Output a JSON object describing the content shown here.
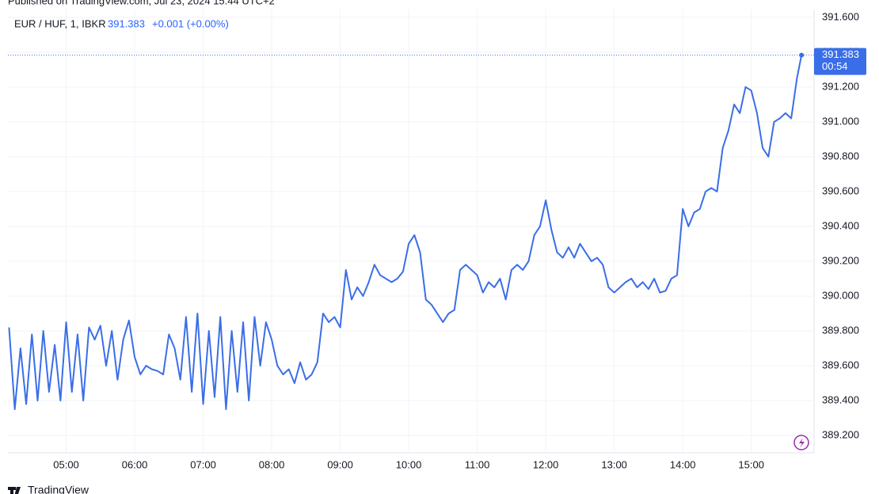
{
  "header": {
    "published": "Published on TradingView.com, Jul 23, 2024 15:44 UTC+2",
    "symbol": "EUR / HUF, 1, IBKR",
    "change": "+0.001 (+0.00%)",
    "countdown": "00:54",
    "brand": "TradingView"
  },
  "chart_data": {
    "type": "line",
    "x": [
      "04:10",
      "04:15",
      "04:20",
      "04:25",
      "04:30",
      "04:35",
      "04:40",
      "04:45",
      "04:50",
      "04:55",
      "05:00",
      "05:05",
      "05:10",
      "05:15",
      "05:20",
      "05:25",
      "05:30",
      "05:35",
      "05:40",
      "05:45",
      "05:50",
      "05:55",
      "06:00",
      "06:05",
      "06:10",
      "06:15",
      "06:20",
      "06:25",
      "06:30",
      "06:35",
      "06:40",
      "06:45",
      "06:50",
      "06:55",
      "07:00",
      "07:05",
      "07:10",
      "07:15",
      "07:20",
      "07:25",
      "07:30",
      "07:35",
      "07:40",
      "07:45",
      "07:50",
      "07:55",
      "08:00",
      "08:05",
      "08:10",
      "08:15",
      "08:20",
      "08:25",
      "08:30",
      "08:35",
      "08:40",
      "08:45",
      "08:50",
      "08:55",
      "09:00",
      "09:05",
      "09:10",
      "09:15",
      "09:20",
      "09:25",
      "09:30",
      "09:35",
      "09:40",
      "09:45",
      "09:50",
      "09:55",
      "10:00",
      "10:05",
      "10:10",
      "10:15",
      "10:20",
      "10:25",
      "10:30",
      "10:35",
      "10:40",
      "10:45",
      "10:50",
      "10:55",
      "11:00",
      "11:05",
      "11:10",
      "11:15",
      "11:20",
      "11:25",
      "11:30",
      "11:35",
      "11:40",
      "11:45",
      "11:50",
      "11:55",
      "12:00",
      "12:05",
      "12:10",
      "12:15",
      "12:20",
      "12:25",
      "12:30",
      "12:35",
      "12:40",
      "12:45",
      "12:50",
      "12:55",
      "13:00",
      "13:05",
      "13:10",
      "13:15",
      "13:20",
      "13:25",
      "13:30",
      "13:35",
      "13:40",
      "13:45",
      "13:50",
      "13:55",
      "14:00",
      "14:05",
      "14:10",
      "14:15",
      "14:20",
      "14:25",
      "14:30",
      "14:35",
      "14:40",
      "14:45",
      "14:50",
      "14:55",
      "15:00",
      "15:05",
      "15:10",
      "15:15",
      "15:20",
      "15:25",
      "15:30",
      "15:35",
      "15:40",
      "15:44"
    ],
    "series": [
      {
        "name": "EUR / HUF",
        "color": "#3a6ee8",
        "values": [
          389.82,
          389.35,
          389.7,
          389.38,
          389.78,
          389.4,
          389.8,
          389.45,
          389.72,
          389.4,
          389.85,
          389.45,
          389.78,
          389.4,
          389.82,
          389.75,
          389.83,
          389.6,
          389.8,
          389.52,
          389.75,
          389.86,
          389.65,
          389.55,
          389.6,
          389.58,
          389.57,
          389.55,
          389.78,
          389.7,
          389.52,
          389.88,
          389.45,
          389.9,
          389.38,
          389.8,
          389.42,
          389.88,
          389.35,
          389.8,
          389.45,
          389.85,
          389.4,
          389.88,
          389.6,
          389.85,
          389.75,
          389.6,
          389.55,
          389.58,
          389.5,
          389.62,
          389.52,
          389.55,
          389.62,
          389.9,
          389.85,
          389.88,
          389.82,
          390.15,
          389.98,
          390.05,
          390.0,
          390.08,
          390.18,
          390.12,
          390.1,
          390.08,
          390.1,
          390.14,
          390.3,
          390.35,
          390.25,
          389.98,
          389.95,
          389.9,
          389.85,
          389.9,
          389.92,
          390.15,
          390.18,
          390.15,
          390.12,
          390.02,
          390.08,
          390.05,
          390.1,
          389.98,
          390.15,
          390.18,
          390.15,
          390.2,
          390.35,
          390.4,
          390.55,
          390.38,
          390.25,
          390.22,
          390.28,
          390.22,
          390.3,
          390.25,
          390.2,
          390.22,
          390.18,
          390.05,
          390.02,
          390.05,
          390.08,
          390.1,
          390.05,
          390.08,
          390.04,
          390.1,
          390.02,
          390.03,
          390.1,
          390.12,
          390.5,
          390.4,
          390.48,
          390.5,
          390.6,
          390.62,
          390.6,
          390.85,
          390.95,
          391.1,
          391.05,
          391.2,
          391.18,
          391.05,
          390.85,
          390.8,
          391.0,
          391.02,
          391.05,
          391.02,
          391.25,
          391.383
        ]
      }
    ],
    "xlim": [
      "04:09",
      "15:55"
    ],
    "xticks": [
      "05:00",
      "06:00",
      "07:00",
      "08:00",
      "09:00",
      "10:00",
      "11:00",
      "12:00",
      "13:00",
      "14:00",
      "15:00"
    ],
    "ylim": [
      389.1,
      391.645
    ],
    "yticks": [
      {
        "value": 389.2,
        "label": "389.200"
      },
      {
        "value": 389.4,
        "label": "389.400"
      },
      {
        "value": 389.6,
        "label": "389.600"
      },
      {
        "value": 389.8,
        "label": "389.800"
      },
      {
        "value": 390,
        "label": "390.000"
      },
      {
        "value": 390.2,
        "label": "390.200"
      },
      {
        "value": 390.4,
        "label": "390.400"
      },
      {
        "value": 390.6,
        "label": "390.600"
      },
      {
        "value": 390.8,
        "label": "390.800"
      },
      {
        "value": 391,
        "label": "391.000"
      },
      {
        "value": 391.2,
        "label": "391.200"
      },
      {
        "value": 391.4,
        "label": "391.400"
      },
      {
        "value": 391.6,
        "label": "391.600"
      }
    ],
    "grid": true
  }
}
